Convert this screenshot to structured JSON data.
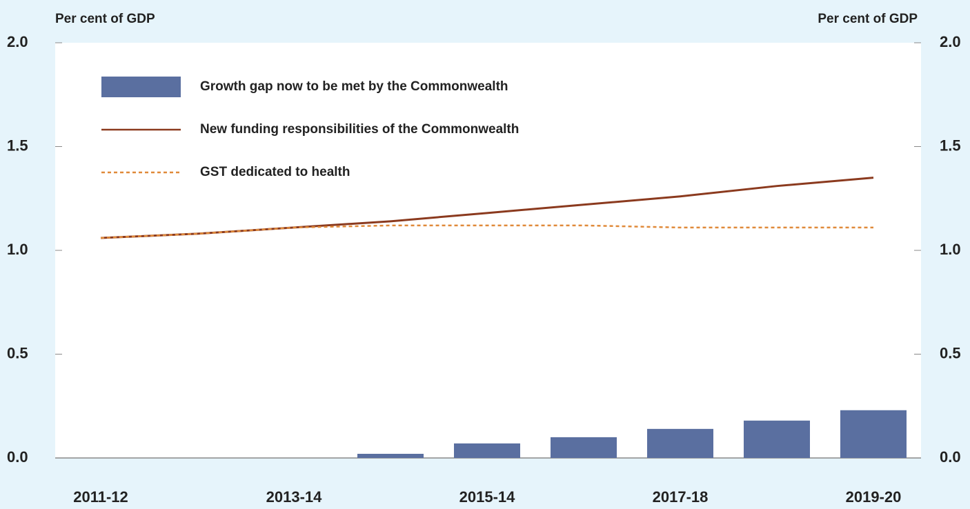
{
  "chart_data": {
    "type": "bar-line",
    "ylabel": "Per cent of GDP",
    "y2label": "Per cent of GDP",
    "categories": [
      "2011-12",
      null,
      "2013-14",
      null,
      "2015-14",
      null,
      "2017-18",
      null,
      "2019-20"
    ],
    "series": [
      {
        "name": "Growth gap now to be met by the Commonwealth",
        "kind": "bar",
        "color": "#5a6fa0",
        "values": [
          0,
          0,
          0,
          0.02,
          0.07,
          0.1,
          0.14,
          0.18,
          0.23
        ]
      },
      {
        "name": "New funding responsibilities of the Commonwealth",
        "kind": "line",
        "color": "#8b3a1e",
        "values": [
          1.06,
          1.08,
          1.11,
          1.14,
          1.18,
          1.22,
          1.26,
          1.31,
          1.35
        ]
      },
      {
        "name": "GST dedicated to health",
        "kind": "line",
        "dashed": true,
        "color": "#e08a3a",
        "values": [
          1.06,
          1.08,
          1.11,
          1.12,
          1.12,
          1.12,
          1.11,
          1.11,
          1.11
        ]
      }
    ],
    "ylim": [
      0,
      2
    ],
    "yticks": [
      {
        "value": 0,
        "label": "0.0"
      },
      0.5,
      {
        "value": 1,
        "label": "1.0"
      },
      1.5,
      {
        "value": 2,
        "label": "2.0"
      }
    ],
    "y2lim": [
      0,
      2
    ],
    "y2ticks": [
      {
        "value": 0,
        "label": "0.0"
      },
      0.5,
      {
        "value": 1,
        "label": "1.0"
      },
      1.5,
      {
        "value": 2,
        "label": "2.0"
      }
    ]
  }
}
